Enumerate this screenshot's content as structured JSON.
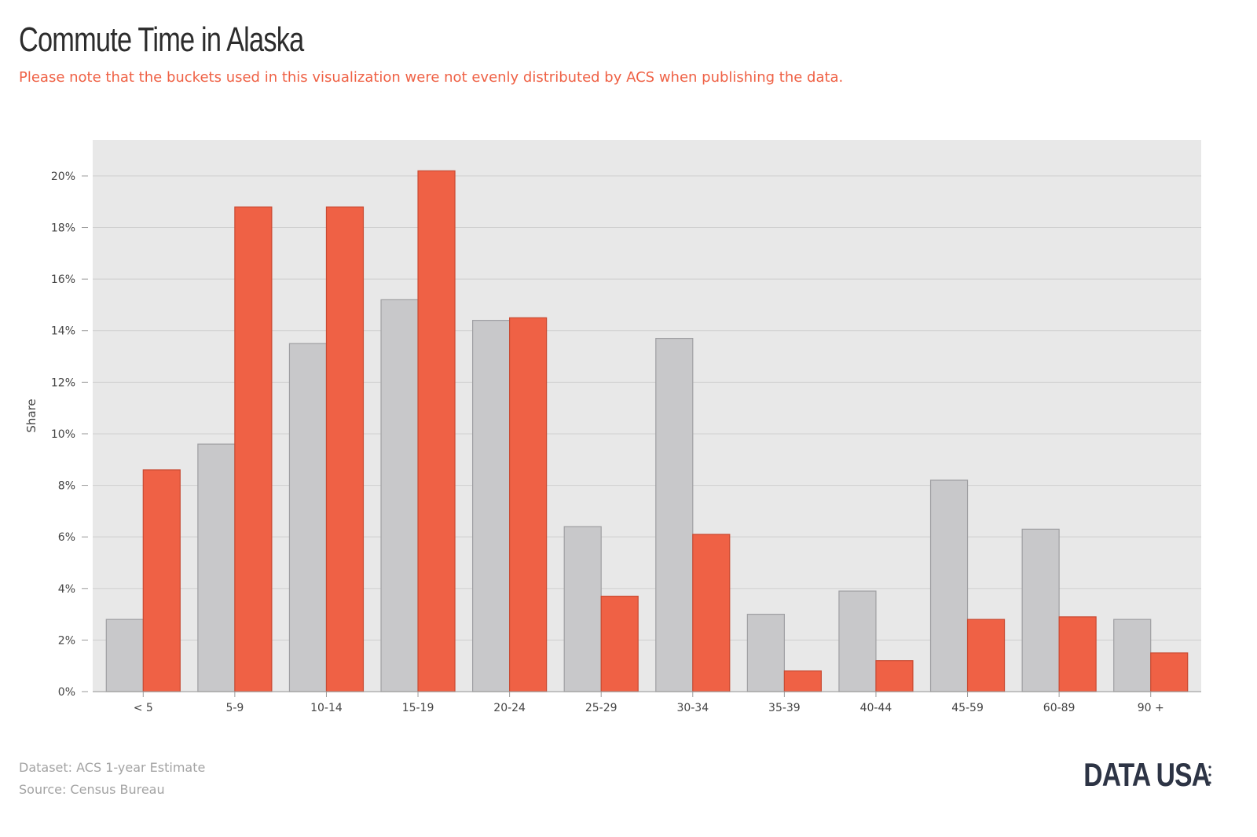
{
  "header": {
    "title": "Commute Time in Alaska",
    "subtitle": "Please note that the buckets used in this visualization were not evenly distributed by ACS when publishing the data."
  },
  "footer": {
    "dataset": "Dataset: ACS 1-year Estimate",
    "source": "Source: Census Bureau",
    "logo": "DATA USA"
  },
  "colors": {
    "series_gray": "#c8c8ca",
    "series_red": "#ef6145",
    "plot_background": "#e8e8e8",
    "gridline": "#cfcfcf"
  },
  "chart_data": {
    "type": "bar",
    "title": "Commute Time in Alaska",
    "xlabel": "",
    "ylabel": "Share",
    "ylim": [
      0,
      21.4
    ],
    "yticks": [
      "0%",
      "2%",
      "4%",
      "6%",
      "8%",
      "10%",
      "12%",
      "14%",
      "16%",
      "18%",
      "20%"
    ],
    "ytick_values": [
      0,
      2,
      4,
      6,
      8,
      10,
      12,
      14,
      16,
      18,
      20
    ],
    "grid": true,
    "legend": "none",
    "categories": [
      "< 5",
      "5-9",
      "10-14",
      "15-19",
      "20-24",
      "25-29",
      "30-34",
      "35-39",
      "40-44",
      "45-59",
      "60-89",
      "90 +"
    ],
    "series": [
      {
        "color": "#c8c8ca",
        "values": [
          2.8,
          9.6,
          13.5,
          15.2,
          14.4,
          6.4,
          13.7,
          3.0,
          3.9,
          8.2,
          6.3,
          2.8
        ]
      },
      {
        "color": "#ef6145",
        "values": [
          8.6,
          18.8,
          18.8,
          20.2,
          14.5,
          3.7,
          6.1,
          0.8,
          1.2,
          2.8,
          2.9,
          1.5
        ]
      }
    ]
  }
}
